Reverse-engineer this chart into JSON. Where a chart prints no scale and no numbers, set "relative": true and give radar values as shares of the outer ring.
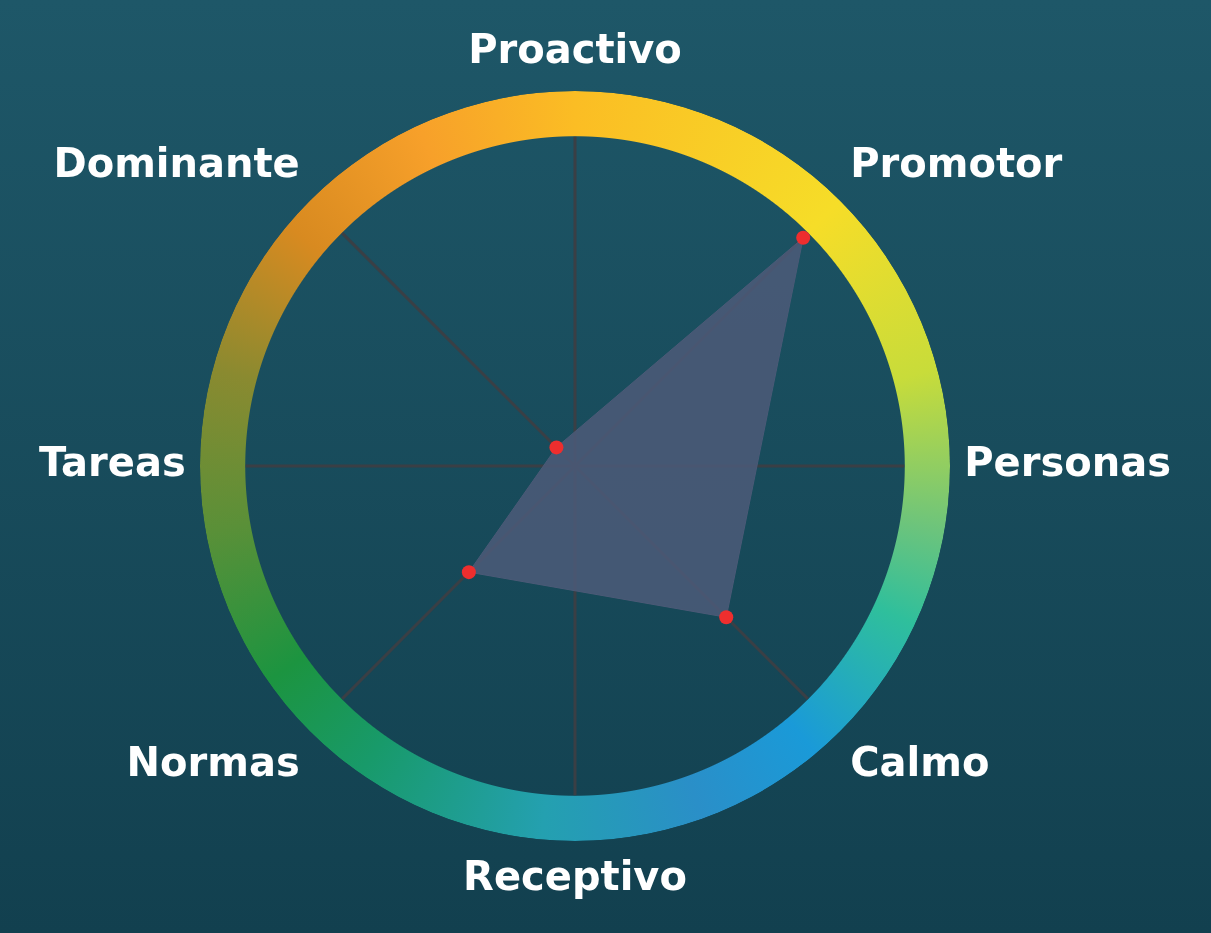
{
  "chart_data": {
    "type": "radar",
    "categories": [
      "Proactivo",
      "Promotor",
      "Personas",
      "Calmo",
      "Receptivo",
      "Normas",
      "Tareas",
      "Dominante"
    ],
    "series": [
      {
        "color": "#4b5a77",
        "values": [
          null,
          0.86,
          null,
          0.57,
          null,
          0.4,
          null,
          0.07
        ]
      }
    ],
    "relative": true,
    "grid": false,
    "legend": false,
    "marker": "circle"
  }
}
